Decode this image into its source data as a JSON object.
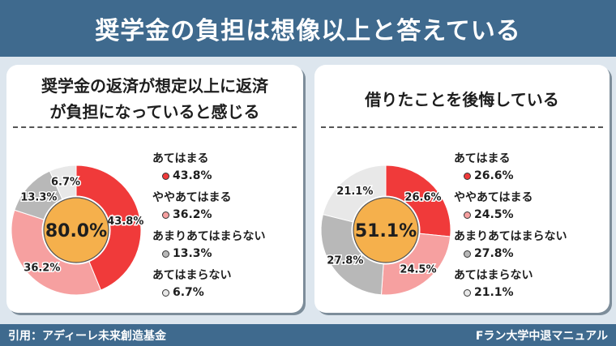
{
  "header": {
    "title": "奨学金の負担は想像以上と答えている"
  },
  "footer": {
    "source": "引用：アディーレ未来創造基金",
    "brand": "Fラン大学中退マニュアル"
  },
  "colors": {
    "header_bg": "#3f6a8e",
    "center": "#f5b04c",
    "c1": "#f03a3a",
    "c2": "#f6a0a0",
    "c3": "#b8b8b8",
    "c4": "#e8e8e8"
  },
  "chart_data": [
    {
      "type": "pie",
      "title": "奨学金の返済が想定以上に返済が負担になっていると感じる",
      "title_lines": [
        "奨学金の返済が想定以上に返済",
        "が負担になっていると感じる"
      ],
      "center_label": "80.0%",
      "categories": [
        "あてはまる",
        "ややあてはまる",
        "あまりあてはまらない",
        "あてはまらない"
      ],
      "values": [
        43.8,
        36.2,
        13.3,
        6.7
      ],
      "value_labels": [
        "43.8%",
        "36.2%",
        "13.3%",
        "6.7%"
      ],
      "colors": [
        "#f03a3a",
        "#f6a0a0",
        "#b8b8b8",
        "#e8e8e8"
      ]
    },
    {
      "type": "pie",
      "title": "借りたことを後悔している",
      "title_lines": [
        "借りたことを後悔している"
      ],
      "center_label": "51.1%",
      "categories": [
        "あてはまる",
        "ややあてはまる",
        "あまりあてはまらない",
        "あてはまらない"
      ],
      "values": [
        26.6,
        24.5,
        27.8,
        21.1
      ],
      "value_labels": [
        "26.6%",
        "24.5%",
        "27.8%",
        "21.1%"
      ],
      "colors": [
        "#f03a3a",
        "#f6a0a0",
        "#b8b8b8",
        "#e8e8e8"
      ]
    }
  ]
}
